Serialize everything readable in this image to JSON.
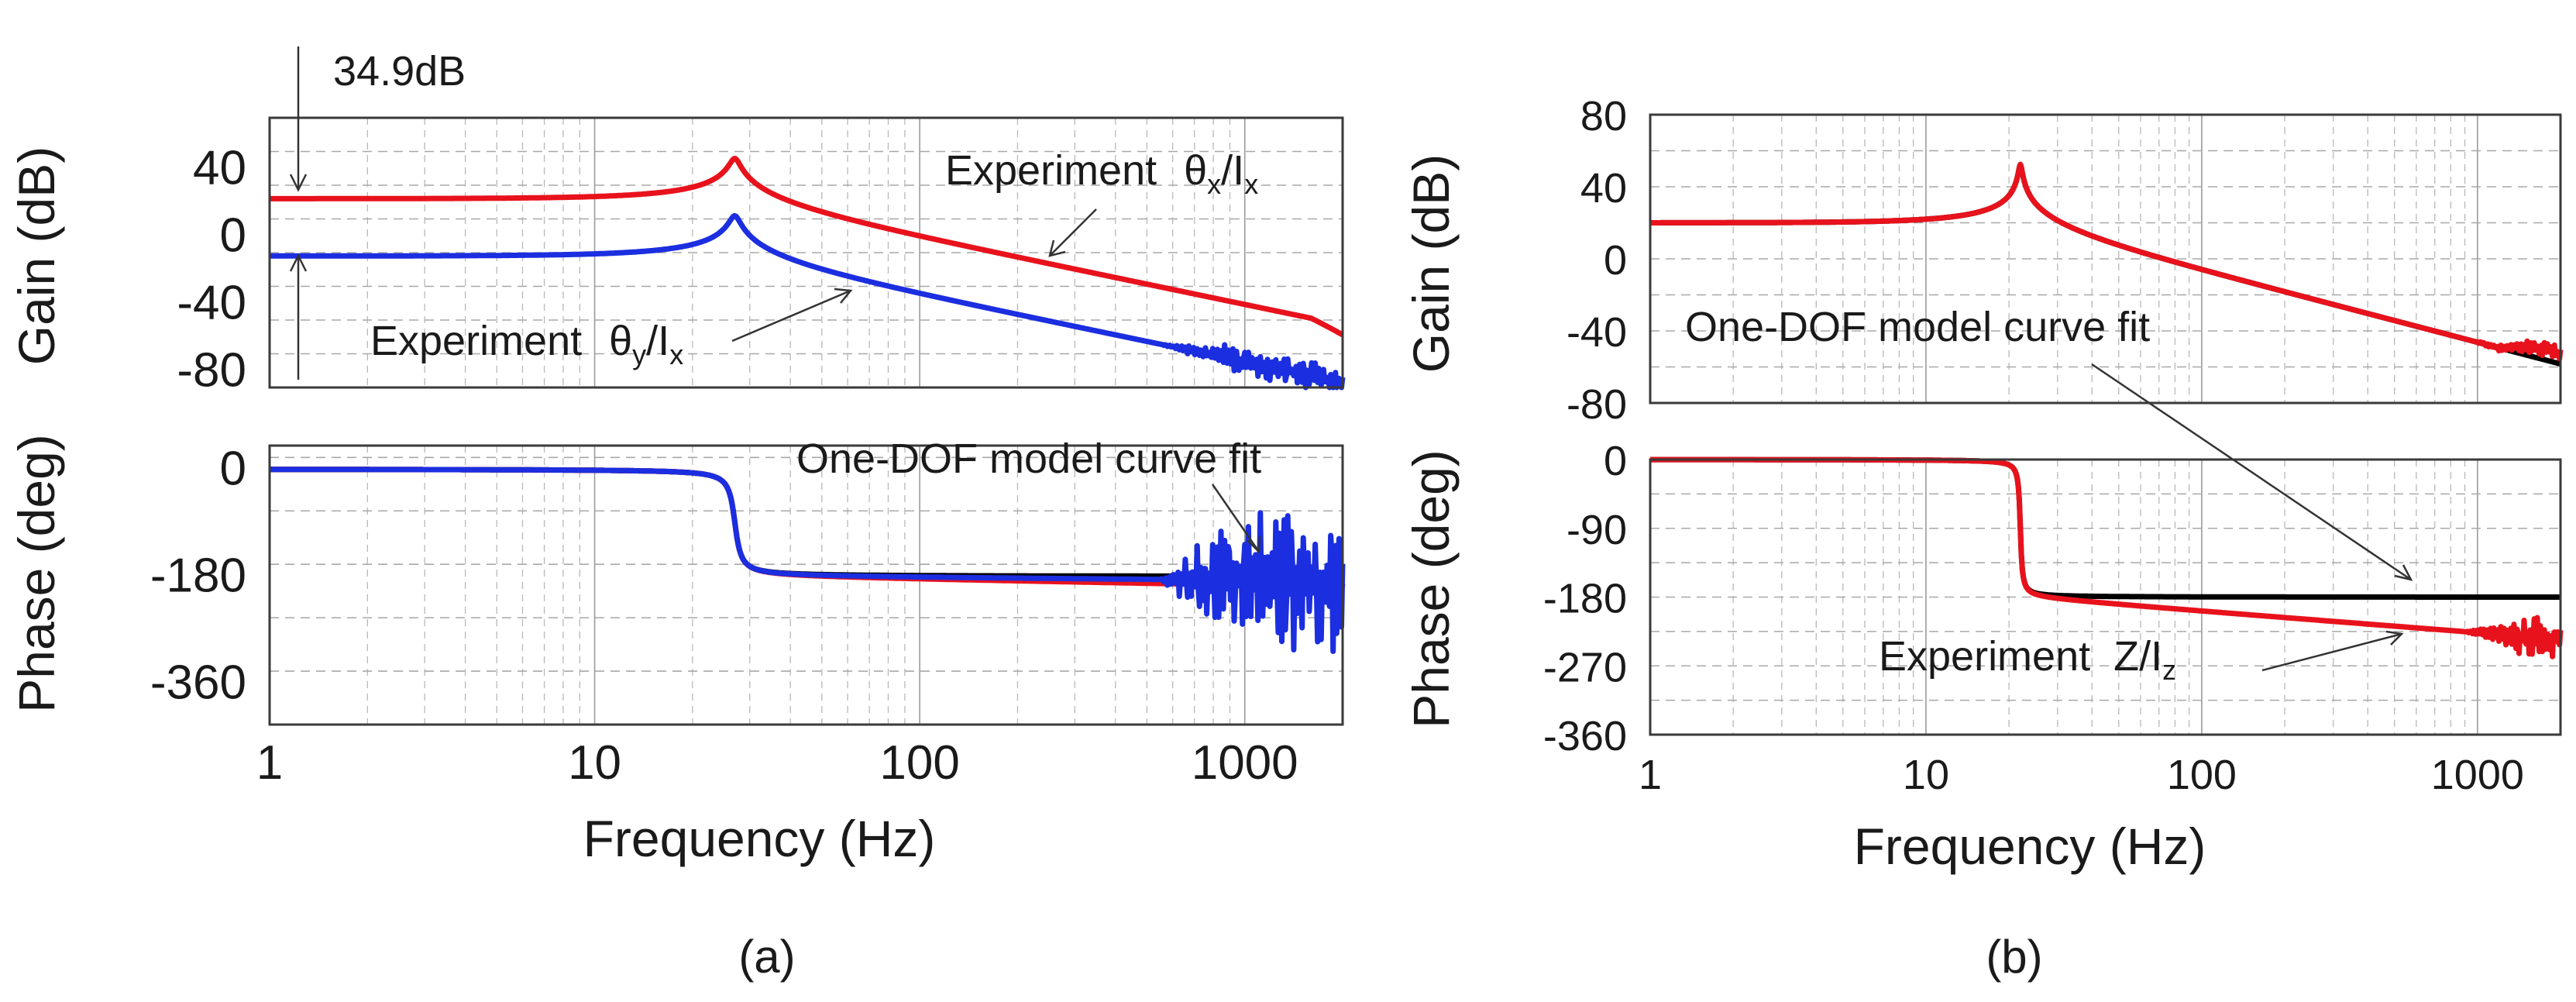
{
  "caption_a": "(a)",
  "caption_b": "(b)",
  "colors": {
    "experiment_x": "#e8121c",
    "experiment_y": "#1b2ee0",
    "model_fit": "#000000"
  },
  "chart_data": [
    {
      "id": "a-gain",
      "type": "line",
      "ylabel": "Gain (dB)",
      "xscale": "log",
      "xlim": [
        1,
        2000
      ],
      "ylim": [
        -90,
        70
      ],
      "yticks": [
        40,
        0,
        -40,
        -80
      ],
      "series": [
        {
          "name": "Experiment θx/Ix",
          "color": "#e8121c",
          "style": "resonance",
          "params": {
            "k_db": 22,
            "fn": 27,
            "zeta": 0.032,
            "noise": 1.0,
            "noise_start": 3000,
            "noise_amp": 0,
            "tail": -6,
            "tail_start": 1600
          }
        },
        {
          "name": "Experiment θy/Ix",
          "color": "#1b2ee0",
          "style": "resonance",
          "params": {
            "k_db": -12,
            "fn": 27,
            "zeta": 0.032,
            "noise": 1.0,
            "noise_start": 550,
            "noise_amp": 8,
            "tail": 0,
            "tail_start": 5000
          }
        }
      ],
      "annotations": [
        {
          "label": "34.9dB"
        },
        {
          "label": "Experiment",
          "sublabel_main": "θ",
          "sub": "x",
          "slash": "/I",
          "sub2": "x"
        },
        {
          "label": "Experiment",
          "sublabel_main": "θ",
          "sub": "y",
          "slash": "/I",
          "sub2": "x"
        }
      ],
      "xlabel": "",
      "grid": true
    },
    {
      "id": "a-phase",
      "type": "line",
      "ylabel": "Phase (deg)",
      "xlabel": "Frequency (Hz)",
      "xscale": "log",
      "xlim": [
        1,
        2000
      ],
      "ylim": [
        -430,
        40
      ],
      "yticks": [
        0,
        -180,
        -360
      ],
      "xticks": [
        "1",
        "10",
        "100",
        "1000"
      ],
      "series": [
        {
          "name": "One-DOF model curve fit",
          "color": "#000000",
          "style": "phase",
          "params": {
            "fn": 27,
            "zeta": 0.032,
            "drift": 0,
            "noise_start": 99999,
            "noise_amp": 0
          }
        },
        {
          "name": "Experiment θx/Ix",
          "color": "#e8121c",
          "style": "phase",
          "params": {
            "fn": 27,
            "zeta": 0.032,
            "drift": -18,
            "noise_start": 900,
            "noise_amp": 12
          }
        },
        {
          "name": "Experiment θy/Ix",
          "color": "#1b2ee0",
          "style": "phase",
          "params": {
            "fn": 27,
            "zeta": 0.032,
            "drift": -8,
            "noise_start": 550,
            "noise_amp": 110
          }
        }
      ],
      "annotations": [
        {
          "label": "One-DOF model curve fit"
        }
      ],
      "grid": true
    },
    {
      "id": "b-gain",
      "type": "line",
      "ylabel": "Gain (dB)",
      "xscale": "log",
      "xlim": [
        1,
        2000
      ],
      "ylim": [
        -80,
        80
      ],
      "yticks": [
        80,
        40,
        0,
        -40,
        -80
      ],
      "series": [
        {
          "name": "One-DOF model curve fit",
          "color": "#000000",
          "style": "resonance",
          "params": {
            "k_db": 20,
            "fn": 22,
            "zeta": 0.012,
            "noise": 1.0,
            "noise_start": 99999,
            "noise_amp": 0,
            "tail": 0,
            "tail_start": 99999
          }
        },
        {
          "name": "Experiment Z/Iz",
          "color": "#e8121c",
          "style": "resonance",
          "params": {
            "k_db": 20,
            "fn": 22,
            "zeta": 0.012,
            "noise": 1.0,
            "noise_start": 950,
            "noise_amp": 4,
            "tail": 6,
            "tail_start": 1200
          }
        }
      ],
      "annotations": [
        {
          "label": "One-DOF model curve fit"
        }
      ],
      "grid": true
    },
    {
      "id": "b-phase",
      "type": "line",
      "ylabel": "Phase (deg)",
      "xlabel": "Frequency (Hz)",
      "xscale": "log",
      "xlim": [
        1,
        2000
      ],
      "ylim": [
        -360,
        0
      ],
      "yticks": [
        0,
        -90,
        -180,
        -270,
        -360
      ],
      "xticks": [
        "1",
        "10",
        "100",
        "1000"
      ],
      "series": [
        {
          "name": "One-DOF model curve fit",
          "color": "#000000",
          "style": "phase",
          "params": {
            "fn": 22,
            "zeta": 0.012,
            "drift": 0,
            "noise_start": 99999,
            "noise_amp": 0
          }
        },
        {
          "name": "Experiment Z/Iz",
          "color": "#e8121c",
          "style": "phase",
          "params": {
            "fn": 22,
            "zeta": 0.012,
            "drift": -55,
            "noise_start": 900,
            "noise_amp": 25
          }
        }
      ],
      "annotations": [
        {
          "label": "Experiment",
          "sublabel_main": "Z/I",
          "sub": "z"
        }
      ],
      "grid": true
    }
  ]
}
